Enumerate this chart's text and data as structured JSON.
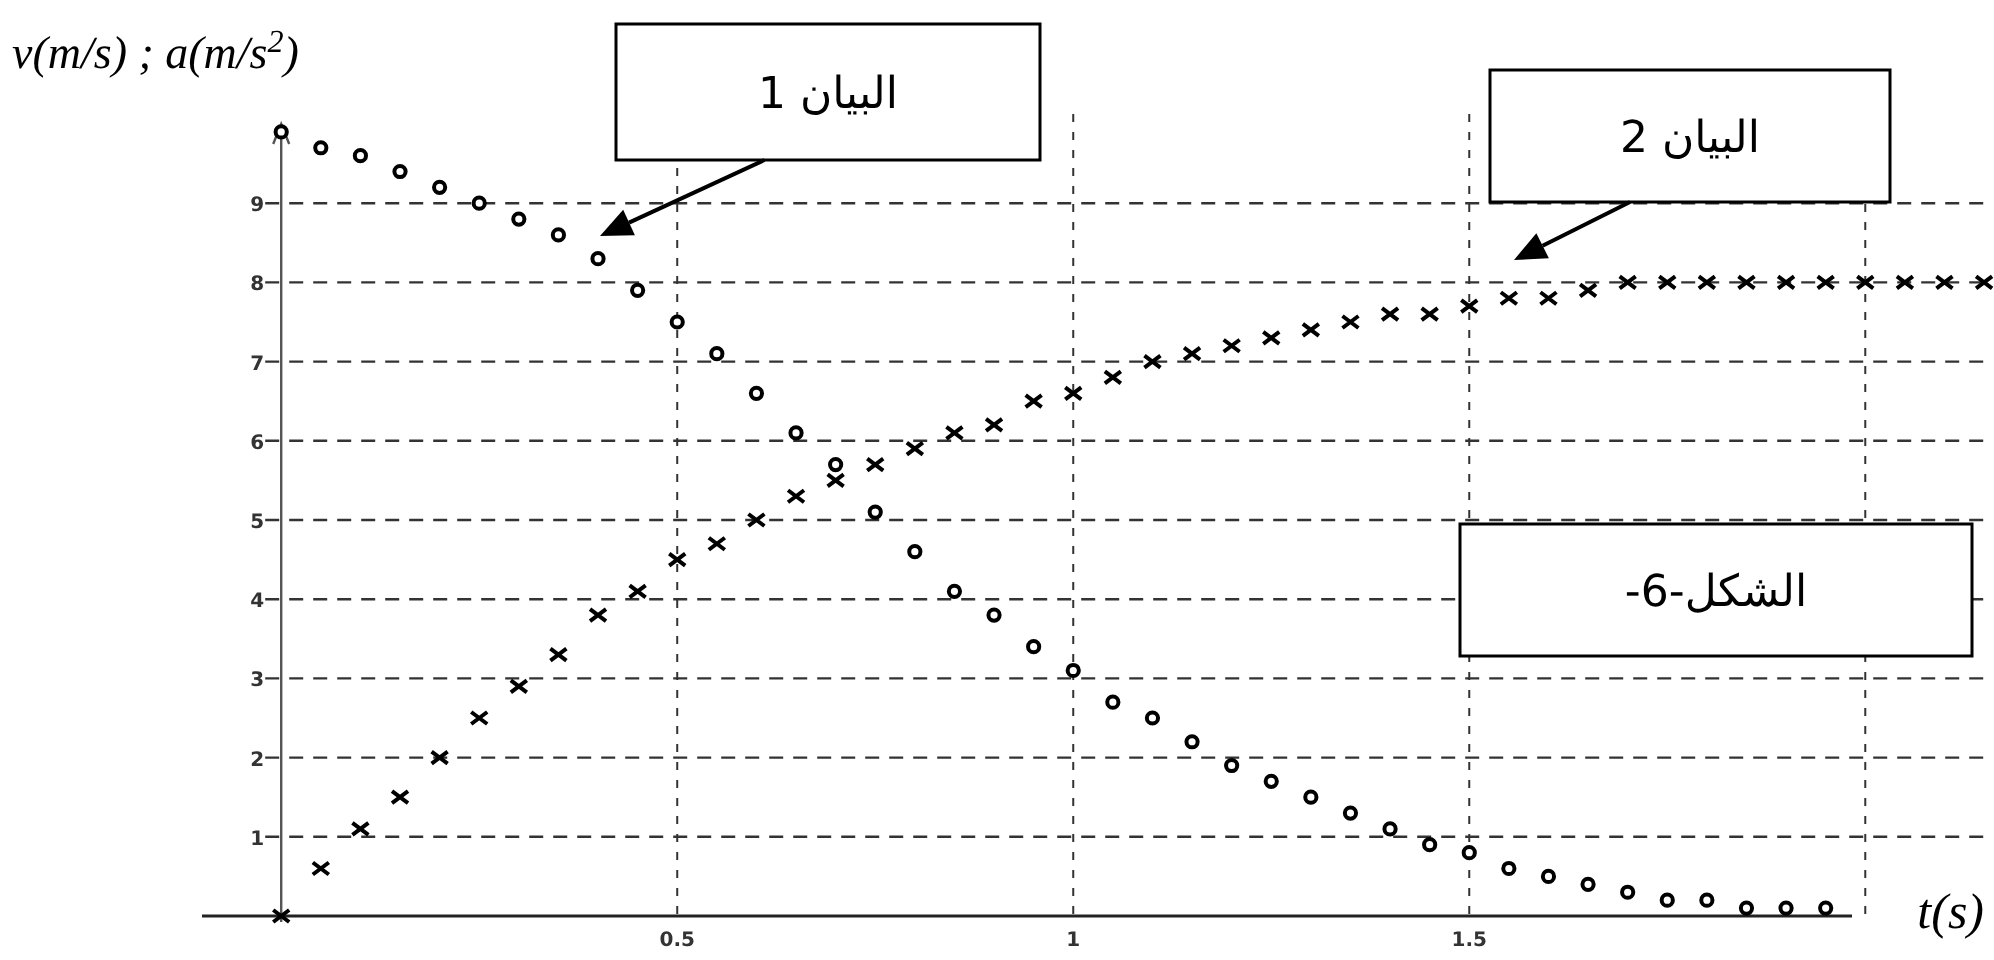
{
  "chart_data": {
    "type": "scatter",
    "ylabel": "v(m/s) ; a(m/s$^{2}$)",
    "xlabel": "t(s)",
    "x": [
      0,
      0.05,
      0.1,
      0.15,
      0.2,
      0.25,
      0.3,
      0.35,
      0.4,
      0.45,
      0.5,
      0.55,
      0.6,
      0.65,
      0.7,
      0.75,
      0.8,
      0.85,
      0.9,
      0.95,
      1,
      1.05,
      1.1,
      1.15,
      1.2,
      1.25,
      1.3,
      1.35,
      1.4,
      1.45,
      1.5,
      1.55,
      1.6,
      1.65,
      1.7,
      1.75,
      1.8,
      1.85,
      1.9,
      1.95,
      2,
      2.05,
      2.1,
      2.15
    ],
    "series": [
      {
        "color": "#000000",
        "marker": "circle",
        "values": [
          9.9,
          9.7,
          9.6,
          9.4,
          9.2,
          9.0,
          8.8,
          8.6,
          8.3,
          7.9,
          7.5,
          7.1,
          6.6,
          6.1,
          5.7,
          5.1,
          4.6,
          4.1,
          3.8,
          3.4,
          3.1,
          2.7,
          2.5,
          2.2,
          1.9,
          1.7,
          1.5,
          1.3,
          1.1,
          0.9,
          0.8,
          0.6,
          0.5,
          0.4,
          0.3,
          0.2,
          0.2,
          0.1,
          0.1,
          0.1,
          null,
          null,
          null,
          null
        ]
      },
      {
        "color": "#000000",
        "marker": "cross",
        "values": [
          0,
          0.6,
          1.1,
          1.5,
          2.0,
          2.5,
          2.9,
          3.3,
          3.8,
          4.1,
          4.5,
          4.7,
          5.0,
          5.3,
          5.5,
          5.7,
          5.9,
          6.1,
          6.2,
          6.5,
          6.6,
          6.8,
          7.0,
          7.1,
          7.2,
          7.3,
          7.4,
          7.5,
          7.6,
          7.6,
          7.7,
          7.8,
          7.8,
          7.9,
          8.0,
          8.0,
          8.0,
          8.0,
          8.0,
          8.0,
          8.0,
          8.0,
          8.0,
          8.0
        ]
      }
    ],
    "xlim": [
      -0.1,
      2.16
    ],
    "ylim": [
      0,
      10
    ],
    "xticks": [
      0.5,
      1,
      1.5,
      {
        "value": 2,
        "label": null
      }
    ],
    "yticks": [
      1,
      2,
      3,
      4,
      5,
      6,
      7,
      8,
      9
    ],
    "grid": true,
    "annotations": [
      "البيان 1",
      "البيان 2",
      "الشكل-6-"
    ]
  }
}
